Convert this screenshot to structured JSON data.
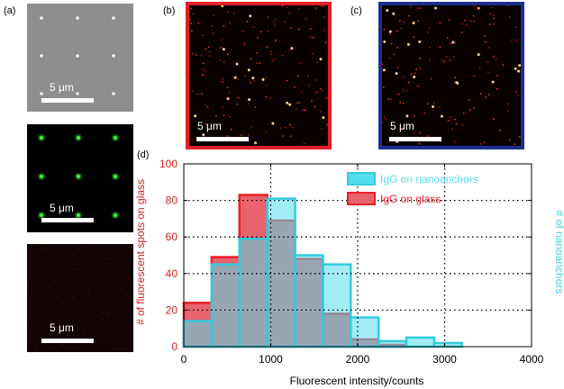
{
  "panels": {
    "a": {
      "label": "(a)",
      "scale_text": "5 μm"
    },
    "b": {
      "label": "(b)",
      "scale_text": "5 μm"
    },
    "c": {
      "label": "(c)",
      "scale_text": "5 μm"
    },
    "d": {
      "label": "(d)"
    }
  },
  "colors": {
    "glass_fill": "#e8636e",
    "glass_edge": "#e8202a",
    "nano_fill": "#55ddee",
    "nano_edge": "#33ccdd",
    "frame_b": "#e41e26",
    "frame_c": "#1c2f8a",
    "ylabel_left": "#d42020",
    "ylabel_right": "#40d0e0"
  },
  "chart_data": {
    "type": "bar",
    "subtype": "overlapping-histogram",
    "xlabel": "Fluorescent intensity/counts",
    "ylabel": "# of fluorescent spots on glass",
    "ylabel_right": "# of nanoanchors",
    "xlim": [
      0,
      4000
    ],
    "ylim": [
      0,
      100
    ],
    "xticks": [
      "0",
      "1000",
      "2000",
      "3000",
      "4000"
    ],
    "yticks": [
      "0",
      "20",
      "40",
      "60",
      "80",
      "100"
    ],
    "grid": "dotted",
    "legend_position": "top-right",
    "bin_edges": [
      0,
      320,
      640,
      960,
      1280,
      1600,
      1920,
      2240,
      2560,
      2880,
      3200
    ],
    "series": [
      {
        "name": "IgG on nanoanchors",
        "values": [
          14,
          45,
          59,
          81,
          50,
          45,
          16,
          3,
          5,
          2
        ]
      },
      {
        "name": "IgG on glass",
        "values": [
          24,
          49,
          83,
          69,
          48,
          18,
          4,
          1,
          0,
          0
        ]
      }
    ]
  }
}
